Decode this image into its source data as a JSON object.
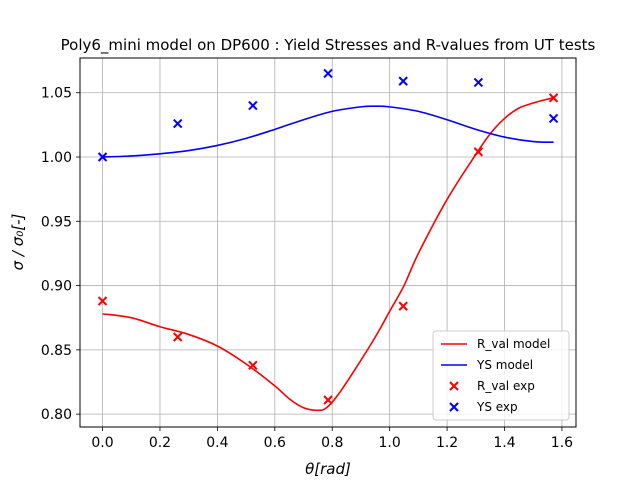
{
  "chart_data": {
    "type": "line",
    "title": "Poly6_mini model on DP600 : Yield Stresses and R-values from UT tests",
    "xlabel": "θ[rad]",
    "ylabel": "σ / σ₀[-]",
    "xlim": [
      -0.0785,
      1.649
    ],
    "ylim": [
      0.79,
      1.077
    ],
    "xticks": [
      0.0,
      0.2,
      0.4,
      0.6,
      0.8,
      1.0,
      1.2,
      1.4,
      1.6
    ],
    "xtick_labels": [
      "0.0",
      "0.2",
      "0.4",
      "0.6",
      "0.8",
      "1.0",
      "1.2",
      "1.4",
      "1.6"
    ],
    "yticks": [
      0.8,
      0.85,
      0.9,
      0.95,
      1.0,
      1.05
    ],
    "ytick_labels": [
      "0.80",
      "0.85",
      "0.90",
      "0.95",
      "1.00",
      "1.05"
    ],
    "grid": true,
    "legend_position": "lower-right",
    "series": [
      {
        "name": "R_val model",
        "kind": "line",
        "color": "#ff0000",
        "x": [
          0.0,
          0.1,
          0.2,
          0.3,
          0.4,
          0.5,
          0.6,
          0.65,
          0.7,
          0.75,
          0.78,
          0.82,
          0.88,
          0.95,
          1.0,
          1.05,
          1.1,
          1.2,
          1.3,
          1.35,
          1.4,
          1.45,
          1.5,
          1.55,
          1.571
        ],
        "y": [
          0.878,
          0.875,
          0.868,
          0.862,
          0.853,
          0.839,
          0.822,
          0.812,
          0.805,
          0.803,
          0.805,
          0.815,
          0.835,
          0.86,
          0.88,
          0.9,
          0.925,
          0.967,
          1.002,
          1.018,
          1.03,
          1.038,
          1.042,
          1.045,
          1.046
        ]
      },
      {
        "name": "YS model",
        "kind": "line",
        "color": "#0000ff",
        "x": [
          0.0,
          0.1,
          0.2,
          0.3,
          0.4,
          0.5,
          0.6,
          0.7,
          0.8,
          0.9,
          0.95,
          1.0,
          1.1,
          1.2,
          1.3,
          1.4,
          1.5,
          1.571
        ],
        "y": [
          1.0,
          1.0008,
          1.0025,
          1.005,
          1.009,
          1.0145,
          1.0215,
          1.029,
          1.0355,
          1.039,
          1.0395,
          1.039,
          1.0355,
          1.029,
          1.0215,
          1.0155,
          1.012,
          1.0115
        ]
      },
      {
        "name": "R_val exp",
        "kind": "scatter",
        "marker": "x",
        "color": "#ff0000",
        "x": [
          0.0,
          0.2618,
          0.5236,
          0.7854,
          1.0472,
          1.309,
          1.5708
        ],
        "y": [
          0.888,
          0.86,
          0.838,
          0.811,
          0.884,
          1.004,
          1.046
        ]
      },
      {
        "name": "YS exp",
        "kind": "scatter",
        "marker": "x",
        "color": "#0000ff",
        "x": [
          0.0,
          0.2618,
          0.5236,
          0.7854,
          1.0472,
          1.309,
          1.5708
        ],
        "y": [
          1.0,
          1.026,
          1.04,
          1.065,
          1.059,
          1.058,
          1.03
        ]
      }
    ]
  }
}
